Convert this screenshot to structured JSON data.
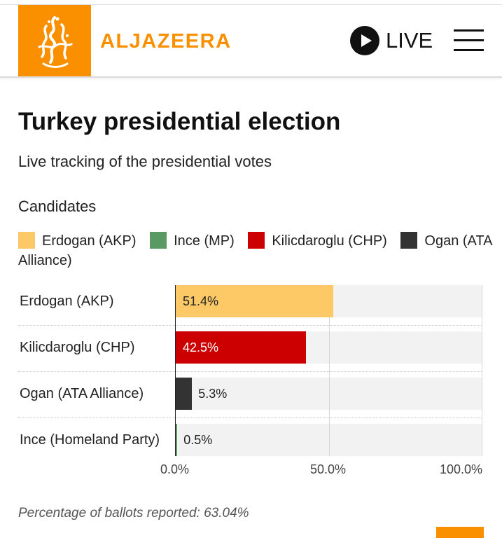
{
  "header": {
    "brand": "ALJAZEERA",
    "live_label": "LIVE",
    "logo_icon": "aljazeera-calligraphy-logo",
    "accent": "#fa9000"
  },
  "page": {
    "title": "Turkey presidential election",
    "subtitle": "Live tracking of the presidential votes",
    "candidates_heading": "Candidates",
    "footnote": "Percentage of ballots reported: 63.04%"
  },
  "legend": [
    {
      "label": "Erdogan (AKP)",
      "color": "#fdc966"
    },
    {
      "label": "Ince (MP)",
      "color": "#5a9a62"
    },
    {
      "label": "Kilicdaroglu (CHP)",
      "color": "#cc0000"
    },
    {
      "label": "Ogan (ATA Alliance)",
      "color": "#333333"
    }
  ],
  "chart_data": {
    "type": "bar",
    "orientation": "horizontal",
    "categories": [
      "Erdogan (AKP)",
      "Kilicdaroglu (CHP)",
      "Ogan (ATA Alliance)",
      "Ince (Homeland Party)"
    ],
    "values": [
      51.4,
      42.5,
      5.3,
      0.5
    ],
    "value_labels": [
      "51.4%",
      "42.5%",
      "5.3%",
      "0.5%"
    ],
    "colors": [
      "#fdc966",
      "#cc0000",
      "#333333",
      "#5a9a62"
    ],
    "xlim": [
      0,
      100
    ],
    "xticks": [
      0,
      50,
      100
    ],
    "xtick_labels": [
      "0.0%",
      "50.0%",
      "100.0%"
    ],
    "grid": true,
    "legend_position": "top"
  }
}
